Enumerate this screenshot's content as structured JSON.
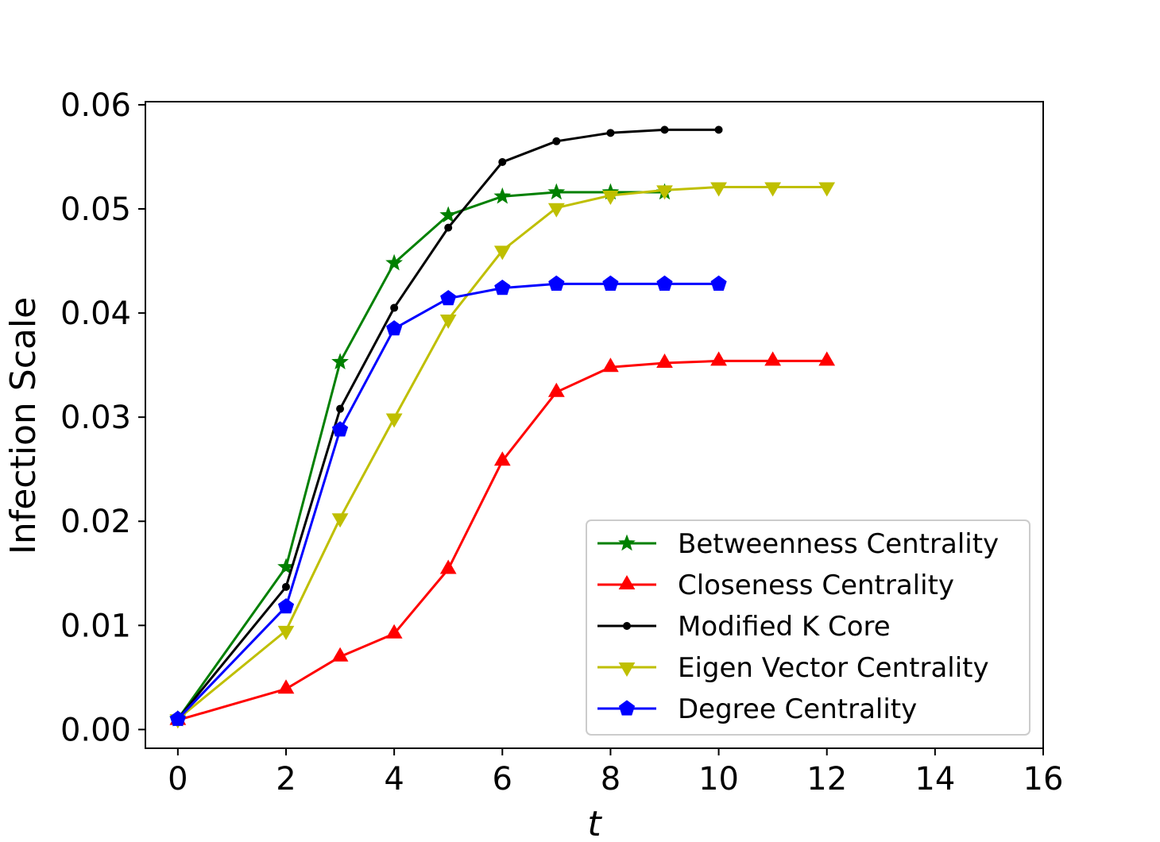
{
  "chart_data": {
    "type": "line",
    "title": "",
    "xlabel": "t",
    "ylabel": "Infection Scale",
    "xlim": [
      -0.6,
      16
    ],
    "ylim": [
      -0.0018,
      0.0603
    ],
    "xticks": [
      0,
      2,
      4,
      6,
      8,
      10,
      12,
      14,
      16
    ],
    "yticks": [
      0.0,
      0.01,
      0.02,
      0.03,
      0.04,
      0.05,
      0.06
    ],
    "ytick_labels": [
      "0.00",
      "0.01",
      "0.02",
      "0.03",
      "0.04",
      "0.05",
      "0.06"
    ],
    "grid": false,
    "legend_position": "lower-right",
    "series": [
      {
        "name": "Betweenness Centrality",
        "color": "#008000",
        "marker": "star",
        "x": [
          0,
          2,
          3,
          4,
          5,
          6,
          7,
          8,
          9
        ],
        "y": [
          0.001,
          0.0156,
          0.0353,
          0.0448,
          0.0494,
          0.0512,
          0.0516,
          0.0516,
          0.0516
        ]
      },
      {
        "name": "Closeness Centrality",
        "color": "#ff0000",
        "marker": "triangle-up",
        "x": [
          0,
          2,
          3,
          4,
          5,
          6,
          7,
          8,
          9,
          10,
          11,
          12
        ],
        "y": [
          0.0009,
          0.0039,
          0.007,
          0.0092,
          0.0154,
          0.0258,
          0.0324,
          0.0348,
          0.0352,
          0.0354,
          0.0354,
          0.0354
        ]
      },
      {
        "name": "Modified K Core",
        "color": "#000000",
        "marker": "point",
        "x": [
          0,
          2,
          3,
          4,
          5,
          6,
          7,
          8,
          9,
          10
        ],
        "y": [
          0.001,
          0.0137,
          0.0308,
          0.0405,
          0.0482,
          0.0545,
          0.0565,
          0.0573,
          0.0576,
          0.0576
        ]
      },
      {
        "name": "Eigen Vector Centrality",
        "color": "#bfbf00",
        "marker": "triangle-down",
        "x": [
          0,
          2,
          3,
          4,
          5,
          6,
          7,
          8,
          9,
          10,
          11,
          12
        ],
        "y": [
          0.001,
          0.0095,
          0.0203,
          0.0299,
          0.0394,
          0.046,
          0.0501,
          0.0513,
          0.0518,
          0.0521,
          0.0521,
          0.0521
        ]
      },
      {
        "name": "Degree Centrality",
        "color": "#0000ff",
        "marker": "pentagon",
        "x": [
          0,
          2,
          3,
          4,
          5,
          6,
          7,
          8,
          9,
          10
        ],
        "y": [
          0.001,
          0.0118,
          0.0288,
          0.0385,
          0.0414,
          0.0424,
          0.0428,
          0.0428,
          0.0428,
          0.0428
        ]
      }
    ]
  }
}
